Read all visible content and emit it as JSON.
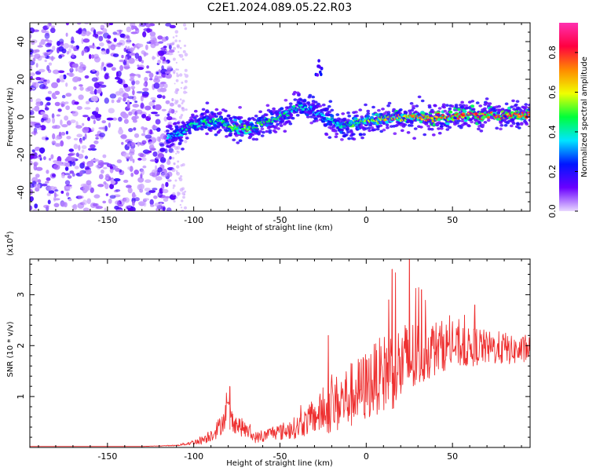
{
  "title": "C2E1.2024.089.05.22.R03",
  "chart_data": [
    {
      "type": "heatmap",
      "xlabel": "Height of straight line (km)",
      "ylabel": "Frequency (Hz)",
      "xlim": [
        -195,
        95
      ],
      "ylim": [
        -50,
        50
      ],
      "x_ticks": [
        -150,
        -100,
        -50,
        0,
        50
      ],
      "y_ticks": [
        -40,
        -20,
        0,
        20,
        40
      ],
      "colorbar": {
        "label": "Normalized spectral amplitude",
        "range": [
          0,
          0.95
        ],
        "ticks": [
          0.0,
          0.2,
          0.4,
          0.6,
          0.8
        ],
        "colormap": [
          "#e9d8ff",
          "#6a00ff",
          "#0015ff",
          "#00e5ff",
          "#00ff3a",
          "#f0ff00",
          "#ff8a00",
          "#ff0040",
          "#ff30b0"
        ]
      },
      "noise_region": {
        "x_range": [
          -195,
          -112
        ],
        "freq_range": [
          -50,
          50
        ],
        "amplitude": 0.1
      },
      "ridge": {
        "x": [
          -115,
          -105,
          -100,
          -95,
          -90,
          -85,
          -80,
          -75,
          -70,
          -65,
          -60,
          -55,
          -50,
          -45,
          -40,
          -35,
          -30,
          -25,
          -20,
          -15,
          -10,
          -5,
          0,
          10,
          20,
          30,
          40,
          50,
          60,
          70,
          80,
          95
        ],
        "freq": [
          -11,
          -7,
          -4,
          -3,
          -2,
          -1,
          -5,
          -6,
          -6,
          -5,
          -3,
          -2,
          0,
          2,
          5,
          5,
          3,
          0,
          -2,
          -4,
          -4,
          -3,
          -2,
          -1,
          -1,
          0,
          0,
          0,
          1,
          1,
          1,
          1
        ],
        "amplitude": [
          0.35,
          0.4,
          0.45,
          0.45,
          0.45,
          0.45,
          0.5,
          0.55,
          0.55,
          0.55,
          0.5,
          0.5,
          0.5,
          0.45,
          0.45,
          0.4,
          0.35,
          0.35,
          0.4,
          0.45,
          0.5,
          0.5,
          0.55,
          0.65,
          0.7,
          0.75,
          0.8,
          0.8,
          0.85,
          0.85,
          0.85,
          0.85
        ]
      },
      "isolated_feature": {
        "x": -27,
        "freq": 25,
        "amplitude": 0.2
      }
    },
    {
      "type": "line",
      "xlabel": "Height of straight line (km)",
      "ylabel": "SNR (10 * v/v)",
      "y_multiplier": "(x10",
      "y_multiplier_exponent": "4",
      "y_multiplier_close": ")",
      "xlim": [
        -195,
        95
      ],
      "ylim": [
        0,
        3.7
      ],
      "x_ticks": [
        -150,
        -100,
        -50,
        0,
        50
      ],
      "y_ticks": [
        1,
        2,
        3
      ],
      "color": "#ee3030",
      "series": [
        {
          "x": [
            -195,
            -130,
            -110,
            -100,
            -95,
            -90,
            -85,
            -80,
            -78,
            -75,
            -70,
            -65,
            -60,
            -55,
            -50,
            -45,
            -40,
            -35,
            -30,
            -25,
            -20,
            -15,
            -10,
            -5,
            0,
            5,
            10,
            15,
            20,
            25,
            30,
            35,
            40,
            45,
            50,
            55,
            60,
            65,
            70,
            75,
            80,
            85,
            90,
            95
          ],
          "y": [
            0.02,
            0.02,
            0.04,
            0.1,
            0.15,
            0.25,
            0.4,
            0.75,
            0.55,
            0.45,
            0.35,
            0.2,
            0.2,
            0.3,
            0.3,
            0.35,
            0.4,
            0.5,
            0.6,
            0.7,
            0.8,
            0.9,
            1.0,
            1.1,
            1.2,
            1.35,
            1.45,
            1.55,
            1.6,
            1.7,
            1.8,
            1.9,
            1.95,
            2.0,
            2.0,
            1.95,
            1.95,
            2.0,
            1.95,
            1.95,
            1.95,
            1.9,
            1.9,
            1.95
          ],
          "spread": [
            0,
            0,
            0.01,
            0.05,
            0.08,
            0.12,
            0.18,
            0.25,
            0.2,
            0.18,
            0.15,
            0.1,
            0.1,
            0.12,
            0.15,
            0.18,
            0.2,
            0.25,
            0.3,
            0.4,
            0.5,
            0.55,
            0.6,
            0.6,
            0.65,
            0.65,
            0.7,
            0.75,
            0.75,
            0.75,
            0.65,
            0.55,
            0.5,
            0.45,
            0.4,
            0.35,
            0.35,
            0.35,
            0.3,
            0.3,
            0.3,
            0.25,
            0.25,
            0.25
          ]
        }
      ],
      "peaks": [
        {
          "x": -79,
          "y": 1.2
        },
        {
          "x": 15,
          "y": 3.5
        },
        {
          "x": 25,
          "y": 3.7
        },
        {
          "x": 13,
          "y": 2.9
        },
        {
          "x": 57,
          "y": 2.6
        },
        {
          "x": 63,
          "y": 2.8
        },
        {
          "x": -22,
          "y": 2.2
        },
        {
          "x": 32,
          "y": 3.1
        }
      ]
    }
  ]
}
